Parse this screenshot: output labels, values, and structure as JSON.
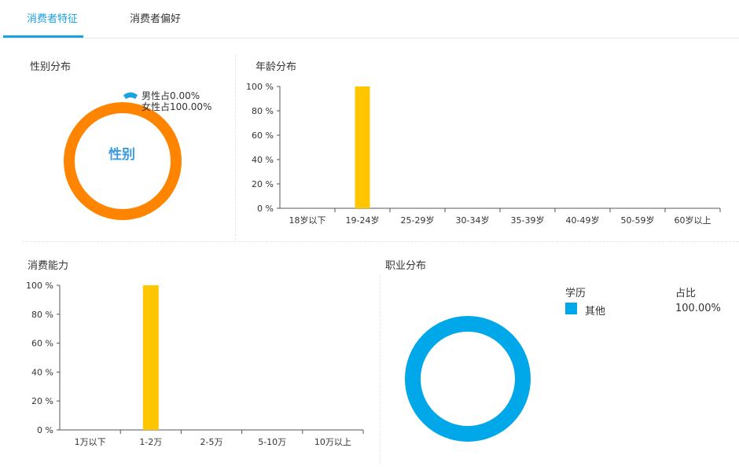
{
  "tabs": [
    {
      "label": "消费者特征",
      "active": true
    },
    {
      "label": "消费者偏好",
      "active": false
    }
  ],
  "panels": {
    "gender": {
      "title": "性别分布",
      "center_label": "性别"
    },
    "age": {
      "title": "年龄分布"
    },
    "spending": {
      "title": "消费能力"
    },
    "occupation": {
      "title": "职业分布",
      "legend_header_left": "学历",
      "legend_header_right": "占比"
    }
  },
  "colors": {
    "accent": "#1aa3e0",
    "bar": "#ffc600",
    "female": "#ff8400",
    "male": "#1aa3e0",
    "occupation": "#00a7e9"
  },
  "chart_data": [
    {
      "type": "pie",
      "title": "性别分布",
      "slices": [
        {
          "label": "男性占0.00%",
          "value": 0.0,
          "color": "#1aa3e0"
        },
        {
          "label": "女性占100.00%",
          "value": 100.0,
          "color": "#ff8400"
        }
      ]
    },
    {
      "type": "bar",
      "title": "年龄分布",
      "categories": [
        "18岁以下",
        "19-24岁",
        "25-29岁",
        "30-34岁",
        "35-39岁",
        "40-49岁",
        "50-59岁",
        "60岁以上"
      ],
      "values": [
        0,
        100,
        0,
        0,
        0,
        0,
        0,
        0
      ],
      "ylim": [
        0,
        100
      ],
      "yticks": [
        "0 %",
        "20 %",
        "40 %",
        "60 %",
        "80 %",
        "100 %"
      ]
    },
    {
      "type": "bar",
      "title": "消费能力",
      "categories": [
        "1万以下",
        "1-2万",
        "2-5万",
        "5-10万",
        "10万以上"
      ],
      "values": [
        0,
        100,
        0,
        0,
        0
      ],
      "ylim": [
        0,
        100
      ],
      "yticks": [
        "0 %",
        "20 %",
        "40 %",
        "60 %",
        "80 %",
        "100 %"
      ]
    },
    {
      "type": "pie",
      "title": "职业分布",
      "slices": [
        {
          "label": "其他",
          "value": 100.0,
          "display": "100.00%",
          "color": "#00a7e9"
        }
      ]
    }
  ]
}
